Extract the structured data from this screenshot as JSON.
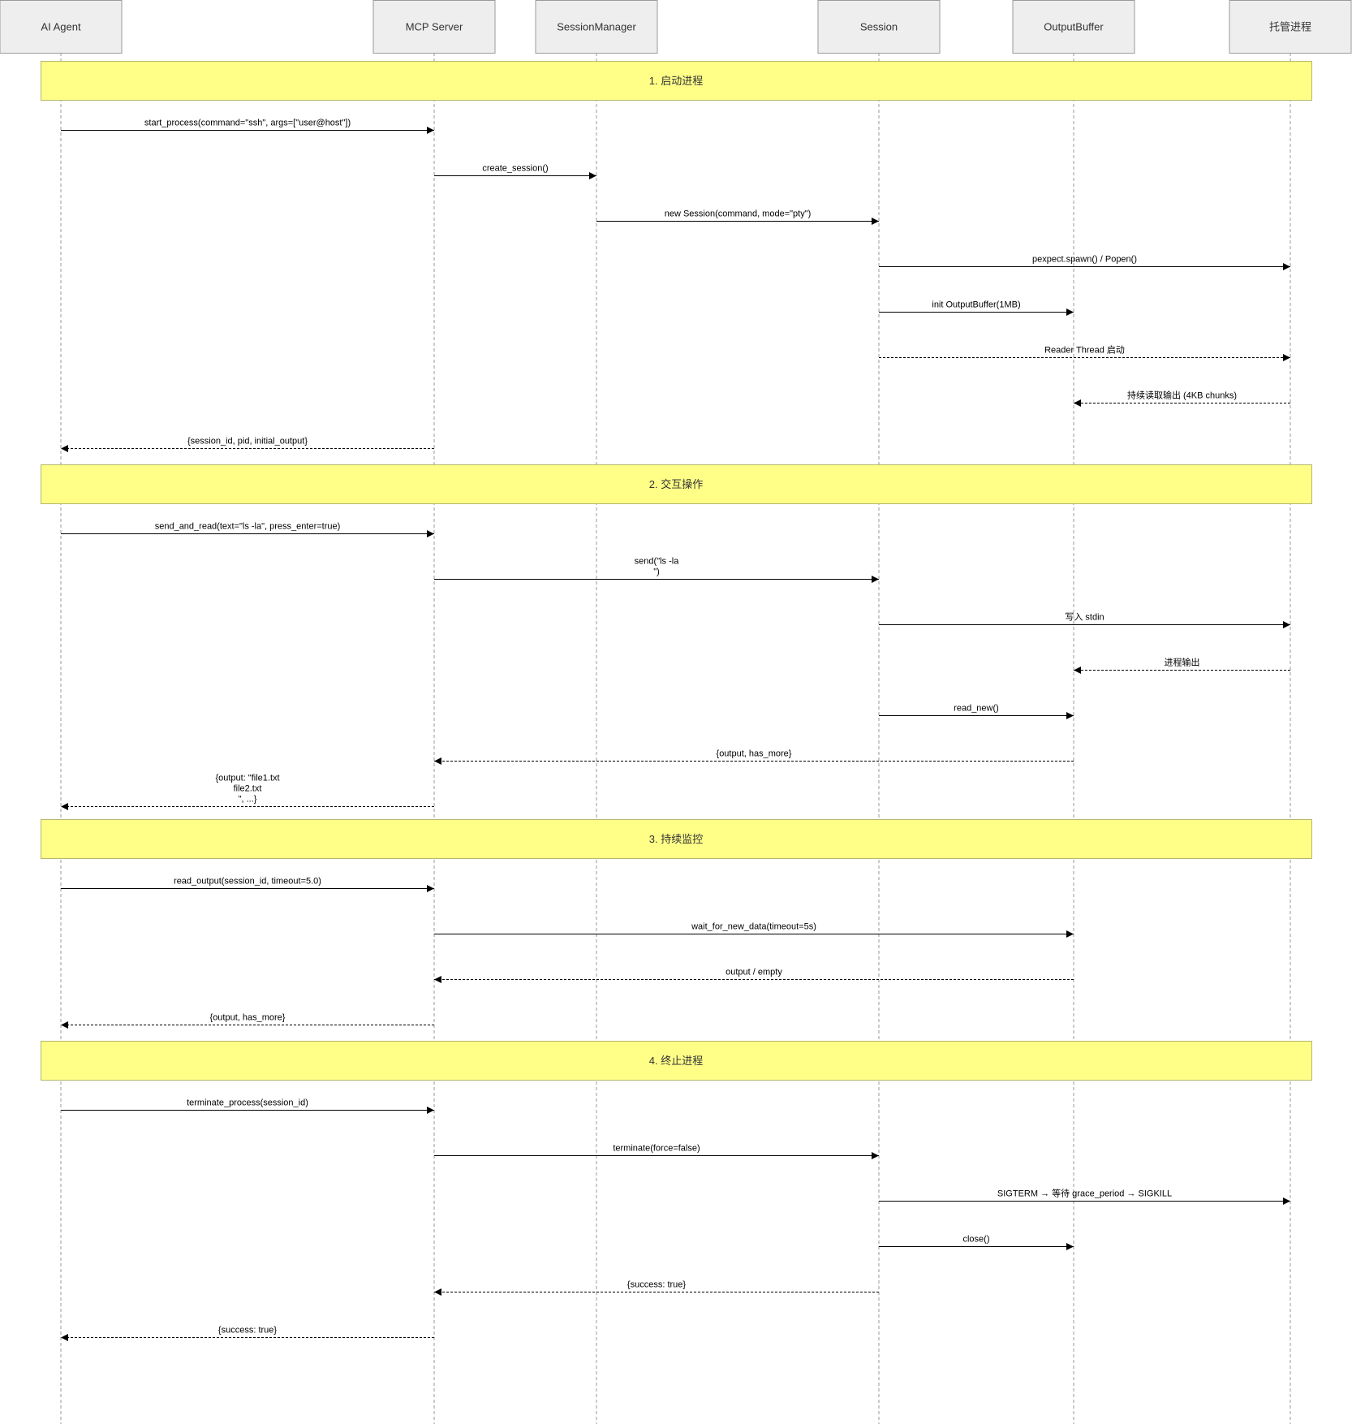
{
  "actors": [
    {
      "id": "agent",
      "label": "AI Agent"
    },
    {
      "id": "mcp",
      "label": "MCP Server"
    },
    {
      "id": "sm",
      "label": "SessionManager"
    },
    {
      "id": "session",
      "label": "Session"
    },
    {
      "id": "buffer",
      "label": "OutputBuffer"
    },
    {
      "id": "proc",
      "label": "托管进程"
    }
  ],
  "sections": [
    {
      "title": "1. 启动进程",
      "messages": [
        {
          "from": "agent",
          "to": "mcp",
          "lines": [
            "start_process(command=\"ssh\", args=[\"user@host\"])"
          ],
          "style": "solid"
        },
        {
          "from": "mcp",
          "to": "sm",
          "lines": [
            "create_session()"
          ],
          "style": "solid"
        },
        {
          "from": "sm",
          "to": "session",
          "lines": [
            "new Session(command, mode=\"pty\")"
          ],
          "style": "solid"
        },
        {
          "from": "session",
          "to": "proc",
          "lines": [
            "pexpect.spawn() / Popen()"
          ],
          "style": "solid"
        },
        {
          "from": "session",
          "to": "buffer",
          "lines": [
            "init OutputBuffer(1MB)"
          ],
          "style": "solid"
        },
        {
          "from": "session",
          "to": "proc",
          "lines": [
            "Reader Thread 启动"
          ],
          "style": "dashed"
        },
        {
          "from": "proc",
          "to": "buffer",
          "lines": [
            "持续读取输出 (4KB chunks)"
          ],
          "style": "dashed"
        },
        {
          "from": "mcp",
          "to": "agent",
          "lines": [
            "{session_id, pid, initial_output}"
          ],
          "style": "dashed"
        }
      ]
    },
    {
      "title": "2. 交互操作",
      "messages": [
        {
          "from": "agent",
          "to": "mcp",
          "lines": [
            "send_and_read(text=\"ls -la\", press_enter=true)"
          ],
          "style": "solid"
        },
        {
          "from": "mcp",
          "to": "session",
          "lines": [
            "send(\"ls -la",
            "\")"
          ],
          "style": "solid"
        },
        {
          "from": "session",
          "to": "proc",
          "lines": [
            "写入 stdin"
          ],
          "style": "solid"
        },
        {
          "from": "proc",
          "to": "buffer",
          "lines": [
            "进程输出"
          ],
          "style": "dashed"
        },
        {
          "from": "session",
          "to": "buffer",
          "lines": [
            "read_new()"
          ],
          "style": "solid"
        },
        {
          "from": "buffer",
          "to": "mcp",
          "lines": [
            "{output, has_more}"
          ],
          "style": "dashed"
        },
        {
          "from": "mcp",
          "to": "agent",
          "lines": [
            "{output: \"file1.txt",
            "file2.txt",
            "\", ...}"
          ],
          "style": "dashed"
        }
      ]
    },
    {
      "title": "3. 持续监控",
      "messages": [
        {
          "from": "agent",
          "to": "mcp",
          "lines": [
            "read_output(session_id, timeout=5.0)"
          ],
          "style": "solid"
        },
        {
          "from": "mcp",
          "to": "buffer",
          "lines": [
            "wait_for_new_data(timeout=5s)"
          ],
          "style": "solid"
        },
        {
          "from": "buffer",
          "to": "mcp",
          "lines": [
            "output / empty"
          ],
          "style": "dashed"
        },
        {
          "from": "mcp",
          "to": "agent",
          "lines": [
            "{output, has_more}"
          ],
          "style": "dashed"
        }
      ]
    },
    {
      "title": "4. 终止进程",
      "messages": [
        {
          "from": "agent",
          "to": "mcp",
          "lines": [
            "terminate_process(session_id)"
          ],
          "style": "solid"
        },
        {
          "from": "mcp",
          "to": "session",
          "lines": [
            "terminate(force=false)"
          ],
          "style": "solid"
        },
        {
          "from": "session",
          "to": "proc",
          "lines": [
            "SIGTERM → 等待 grace_period → SIGKILL"
          ],
          "style": "solid"
        },
        {
          "from": "session",
          "to": "buffer",
          "lines": [
            "close()"
          ],
          "style": "solid"
        },
        {
          "from": "session",
          "to": "mcp",
          "lines": [
            "{success: true}"
          ],
          "style": "dashed"
        },
        {
          "from": "mcp",
          "to": "agent",
          "lines": [
            "{success: true}"
          ],
          "style": "dashed"
        }
      ]
    }
  ]
}
